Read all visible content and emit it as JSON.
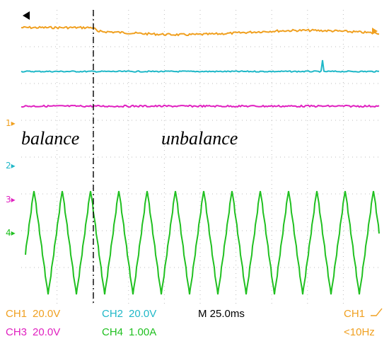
{
  "annotations": {
    "left": "balance",
    "right": "unbalance"
  },
  "markers": [
    {
      "label": "1",
      "color": "#f0a020"
    },
    {
      "label": "2",
      "color": "#20b8c8"
    },
    {
      "label": "3",
      "color": "#e020c0"
    },
    {
      "label": "4",
      "color": "#20c020"
    }
  ],
  "readout": {
    "ch1": {
      "label": "CH1",
      "value": "20.0V",
      "color": "#f0a020"
    },
    "ch2": {
      "label": "CH2",
      "value": "20.0V",
      "color": "#20b8c8"
    },
    "ch3": {
      "label": "CH3",
      "value": "20.0V",
      "color": "#e020c0"
    },
    "ch4": {
      "label": "CH4",
      "value": "1.00A",
      "color": "#20c020"
    },
    "timebase": "M 25.0ms",
    "trigger_source": "CH1",
    "trigger_freq": "<10Hz"
  },
  "colors": {
    "trace1": "#f0a020",
    "trace2": "#20b8c8",
    "trace3": "#e020c0",
    "trace4": "#20c020",
    "grid": "#bdbdbd"
  }
}
